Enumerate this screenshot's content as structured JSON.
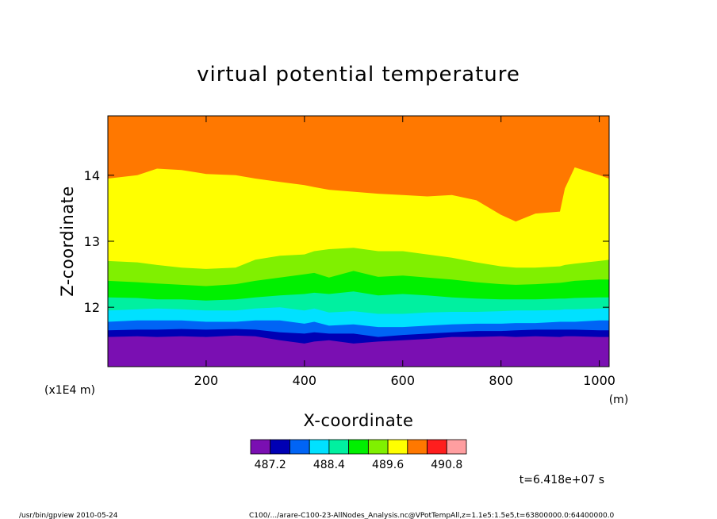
{
  "chart_data": {
    "type": "heatmap",
    "title": "virtual potential temperature",
    "xlabel": "X-coordinate",
    "ylabel": "Z-coordinate",
    "x_unit": "(m)",
    "y_unit": "(x1E4 m)",
    "xlim": [
      0,
      1020
    ],
    "ylim": [
      11.1,
      14.9
    ],
    "x_ticks": [
      {
        "value": 200,
        "label": "200"
      },
      {
        "value": 400,
        "label": "400"
      },
      {
        "value": 600,
        "label": "600"
      },
      {
        "value": 800,
        "label": "800"
      },
      {
        "value": 1000,
        "label": "1000"
      }
    ],
    "y_ticks": [
      {
        "value": 12,
        "label": "12"
      },
      {
        "value": 13,
        "label": "13"
      },
      {
        "value": 14,
        "label": "14"
      }
    ],
    "x_samples": [
      0,
      60,
      100,
      150,
      200,
      260,
      300,
      350,
      400,
      420,
      450,
      500,
      550,
      600,
      650,
      700,
      750,
      800,
      830,
      870,
      920,
      930,
      950,
      1000,
      1020
    ],
    "contour_levels": [
      {
        "color": "#7a0fb2",
        "z": [
          11.55,
          11.56,
          11.55,
          11.56,
          11.55,
          11.57,
          11.56,
          11.5,
          11.45,
          11.48,
          11.5,
          11.45,
          11.48,
          11.5,
          11.52,
          11.55,
          11.55,
          11.56,
          11.55,
          11.56,
          11.55,
          11.56,
          11.56,
          11.55,
          11.55
        ]
      },
      {
        "color": "#0000b4",
        "z": [
          11.65,
          11.66,
          11.66,
          11.67,
          11.66,
          11.67,
          11.66,
          11.62,
          11.6,
          11.62,
          11.6,
          11.6,
          11.55,
          11.58,
          11.6,
          11.62,
          11.64,
          11.64,
          11.65,
          11.66,
          11.66,
          11.66,
          11.66,
          11.65,
          11.65
        ]
      },
      {
        "color": "#0064f5",
        "z": [
          11.78,
          11.8,
          11.8,
          11.8,
          11.78,
          11.78,
          11.8,
          11.8,
          11.75,
          11.78,
          11.72,
          11.74,
          11.7,
          11.7,
          11.72,
          11.74,
          11.75,
          11.75,
          11.76,
          11.76,
          11.78,
          11.78,
          11.78,
          11.8,
          11.8
        ]
      },
      {
        "color": "#00e1ff",
        "z": [
          11.95,
          11.97,
          11.98,
          11.97,
          11.95,
          11.95,
          11.98,
          12.0,
          11.95,
          11.98,
          11.92,
          11.94,
          11.9,
          11.9,
          11.92,
          11.93,
          11.93,
          11.94,
          11.95,
          11.95,
          11.96,
          11.97,
          11.97,
          11.98,
          11.98
        ]
      },
      {
        "color": "#00f0a0",
        "z": [
          12.15,
          12.14,
          12.12,
          12.12,
          12.1,
          12.12,
          12.15,
          12.18,
          12.2,
          12.22,
          12.2,
          12.24,
          12.18,
          12.2,
          12.18,
          12.15,
          12.13,
          12.12,
          12.12,
          12.12,
          12.13,
          12.13,
          12.14,
          12.15,
          12.15
        ]
      },
      {
        "color": "#00f000",
        "z": [
          12.4,
          12.38,
          12.36,
          12.34,
          12.32,
          12.35,
          12.4,
          12.45,
          12.5,
          12.52,
          12.45,
          12.55,
          12.46,
          12.48,
          12.45,
          12.42,
          12.38,
          12.35,
          12.34,
          12.35,
          12.37,
          12.38,
          12.4,
          12.42,
          12.42
        ]
      },
      {
        "color": "#80f000",
        "z": [
          12.7,
          12.68,
          12.64,
          12.6,
          12.58,
          12.6,
          12.72,
          12.78,
          12.8,
          12.85,
          12.88,
          12.9,
          12.85,
          12.85,
          12.8,
          12.75,
          12.68,
          12.62,
          12.6,
          12.6,
          12.62,
          12.64,
          12.66,
          12.7,
          12.72
        ]
      },
      {
        "color": "#ffff00",
        "z": [
          13.95,
          14.0,
          14.1,
          14.08,
          14.02,
          14.0,
          13.95,
          13.9,
          13.85,
          13.82,
          13.78,
          13.75,
          13.72,
          13.7,
          13.68,
          13.7,
          13.62,
          13.4,
          13.3,
          13.42,
          13.45,
          13.8,
          14.12,
          14.0,
          13.95
        ]
      },
      {
        "color": "#ff7800",
        "z": [
          14.9,
          14.9,
          14.9,
          14.9,
          14.9,
          14.9,
          14.9,
          14.9,
          14.9,
          14.9,
          14.9,
          14.9,
          14.9,
          14.9,
          14.9,
          14.9,
          14.9,
          14.9,
          14.9,
          14.9,
          14.9,
          14.9,
          14.9,
          14.9,
          14.9
        ]
      }
    ],
    "colorbar": {
      "colors": [
        "#7a0fb2",
        "#0000b4",
        "#0064f5",
        "#00e1ff",
        "#00f0a0",
        "#00f000",
        "#80f000",
        "#ffff00",
        "#ff7800",
        "#ff1e1e",
        "#ff9ea0"
      ],
      "labels": [
        {
          "after_index": 0,
          "label": "487.2"
        },
        {
          "after_index": 3,
          "label": "488.4"
        },
        {
          "after_index": 6,
          "label": "489.6"
        },
        {
          "after_index": 9,
          "label": "490.8"
        }
      ]
    },
    "time_label": "t=6.418e+07 s"
  },
  "footer": {
    "left": "/usr/bin/gpview   2010-05-24",
    "right": "C100/.../arare-C100-23-AllNodes_Analysis.nc@VPotTempAll,z=1.1e5:1.5e5,t=63800000.0:64400000.0"
  }
}
